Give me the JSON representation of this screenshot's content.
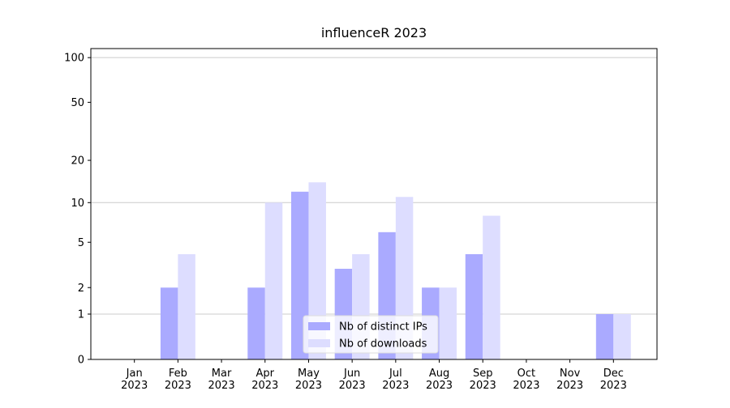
{
  "chart_data": {
    "type": "bar",
    "title": "influenceR 2023",
    "categories": [
      "Jan\n2023",
      "Feb\n2023",
      "Mar\n2023",
      "Apr\n2023",
      "May\n2023",
      "Jun\n2023",
      "Jul\n2023",
      "Aug\n2023",
      "Sep\n2023",
      "Oct\n2023",
      "Nov\n2023",
      "Dec\n2023"
    ],
    "series": [
      {
        "name": "Nb of distinct IPs",
        "color": "#aaaaff",
        "values": [
          0,
          2,
          0,
          2,
          12,
          3,
          6,
          2,
          4,
          0,
          0,
          1
        ]
      },
      {
        "name": "Nb of downloads",
        "color": "#ddddff",
        "values": [
          0,
          4,
          0,
          10,
          14,
          4,
          11,
          2,
          8,
          0,
          0,
          1
        ]
      }
    ],
    "yscale": "log1p",
    "ylim": [
      0,
      115
    ],
    "yticks": [
      0,
      1,
      2,
      5,
      10,
      20,
      50,
      100
    ],
    "grid": true,
    "legend": "lower center"
  }
}
